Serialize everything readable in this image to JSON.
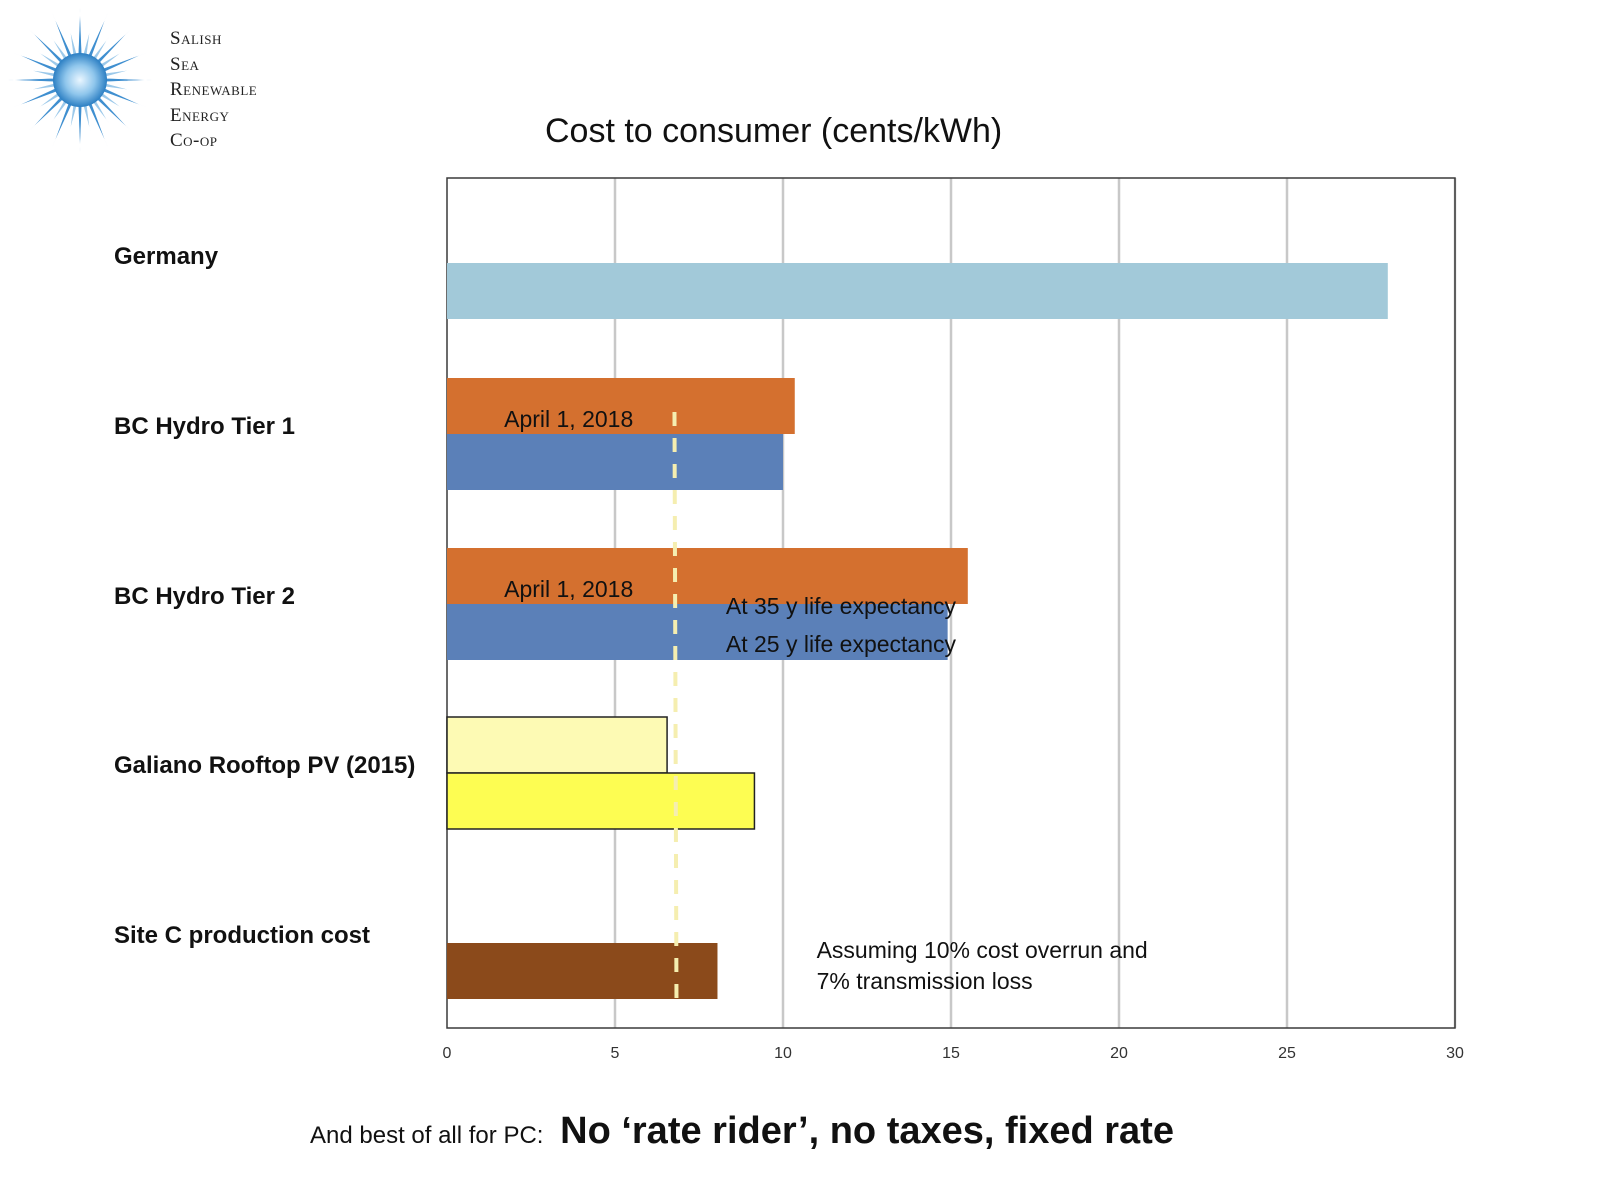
{
  "logo": {
    "lines": [
      "Salish",
      "Sea",
      "Renewable",
      "Energy",
      "Co-op"
    ]
  },
  "chart_data": {
    "type": "bar",
    "orientation": "horizontal",
    "title": "Cost to consumer (cents/kWh)",
    "xlim": [
      0,
      30
    ],
    "xticks": [
      "0",
      "5",
      "10",
      "15",
      "20",
      "25",
      "30"
    ],
    "grid": true,
    "categories": [
      "Germany",
      "BC Hydro Tier 1",
      "BC Hydro Tier 2",
      "Galiano Rooftop PV (2015)",
      "Site C production cost"
    ],
    "bars": [
      {
        "category": "Germany",
        "value": 28.0,
        "slot": "single",
        "color": "#a2c9d9",
        "outline": false
      },
      {
        "category": "BC Hydro Tier 1",
        "value": 10.35,
        "slot": "upper",
        "color": "#d4702f",
        "outline": false
      },
      {
        "category": "BC Hydro Tier 1",
        "value": 10.0,
        "slot": "lower",
        "color": "#5b80b8",
        "outline": false
      },
      {
        "category": "BC Hydro Tier 2",
        "value": 15.5,
        "slot": "upper",
        "color": "#d4702f",
        "outline": false
      },
      {
        "category": "BC Hydro Tier 2",
        "value": 14.9,
        "slot": "lower",
        "color": "#5b80b8",
        "outline": false
      },
      {
        "category": "Galiano Rooftop PV (2015)",
        "value": 6.55,
        "slot": "upper",
        "color": "#fdfab4",
        "outline": true
      },
      {
        "category": "Galiano Rooftop PV (2015)",
        "value": 9.15,
        "slot": "lower",
        "color": "#fdfd52",
        "outline": true
      },
      {
        "category": "Site C production cost",
        "value": 8.05,
        "slot": "single-low",
        "color": "#8b4a1b",
        "outline": false
      }
    ],
    "reference_line": {
      "x": 6.8,
      "style": "dashed",
      "color": "#f5eeb0"
    },
    "annotations": [
      {
        "text": "April 1, 2018",
        "category": "BC Hydro Tier 1",
        "x": 1.7,
        "row": "split"
      },
      {
        "text": "April 1, 2018",
        "category": "BC Hydro Tier 2",
        "x": 1.7,
        "row": "split"
      },
      {
        "text": "At 35 y life expectancy",
        "category": "BC Hydro Tier 2",
        "x": 8.3,
        "row": "split-below"
      },
      {
        "text": "At 25 y life expectancy",
        "category": "BC Hydro Tier 2",
        "x": 8.3,
        "row": "lower-below"
      },
      {
        "text": "Assuming 10% cost overrun and",
        "category": "Site C production cost",
        "x": 11.0,
        "row": "note1"
      },
      {
        "text": "7% transmission loss",
        "category": "Site C production cost",
        "x": 11.0,
        "row": "note2"
      }
    ]
  },
  "footer": {
    "prefix": "And best of all for PC:",
    "emphasis": "No ‘rate rider’, no taxes, fixed rate"
  }
}
